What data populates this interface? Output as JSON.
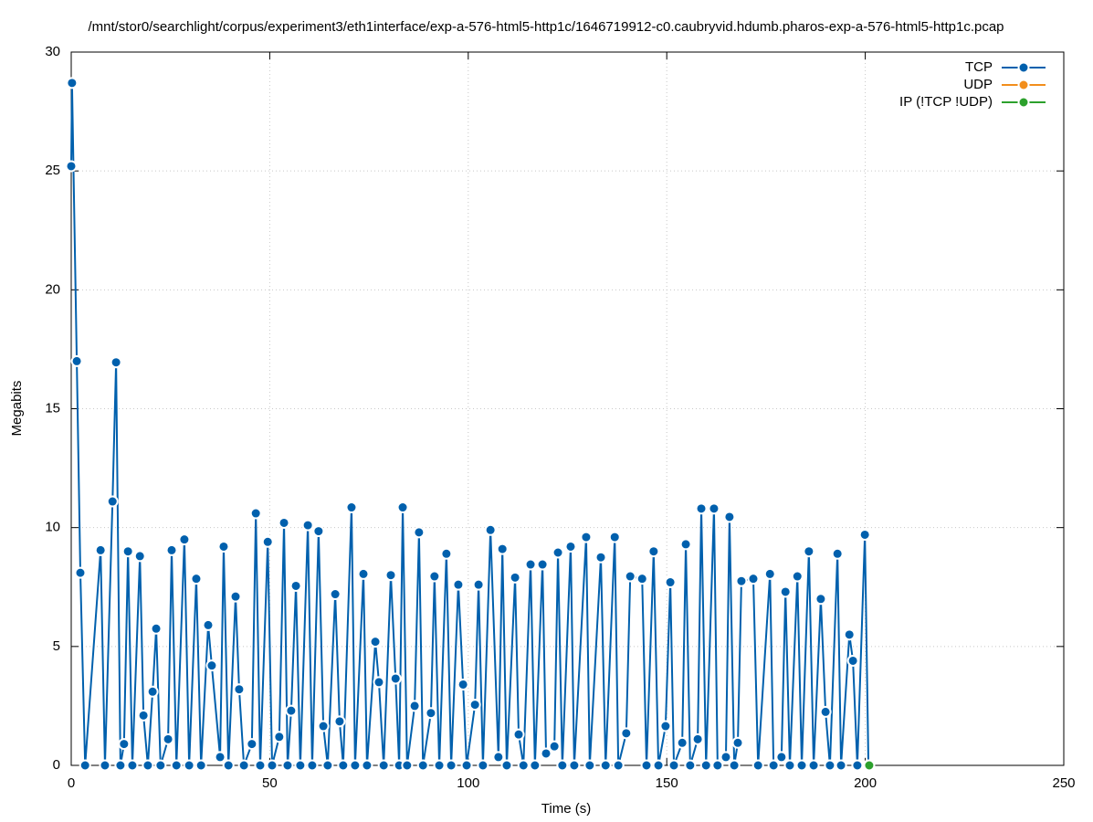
{
  "chart_data": {
    "type": "line",
    "title": "/mnt/stor0/searchlight/corpus/experiment3/eth1interface/exp-a-576-html5-http1c/1646719912-c0.caubryvid.hdumb.pharos-exp-a-576-html5-http1c.pcap",
    "x_label": "Time (s)",
    "y_label": "Megabits",
    "xlim": [
      0,
      250
    ],
    "xticks": [
      0,
      50,
      100,
      150,
      200,
      250
    ],
    "ylim": [
      0,
      30
    ],
    "yticks": [
      0,
      5,
      10,
      15,
      20,
      25,
      30
    ],
    "grid": true,
    "legend": "top-right",
    "series": [
      {
        "name": "TCP",
        "color": "#0060ad",
        "x": [
          0,
          0.2,
          1.4,
          2.3,
          3.5,
          7.4,
          8.5,
          10.4,
          11.3,
          12.4,
          13.3,
          14.3,
          15.4,
          17.3,
          18.2,
          19.3,
          20.5,
          21.4,
          22.5,
          24.4,
          25.3,
          26.5,
          28.5,
          29.7,
          31.5,
          32.7,
          34.5,
          35.4,
          37.5,
          38.4,
          39.6,
          41.4,
          42.3,
          43.5,
          45.5,
          46.5,
          47.6,
          49.5,
          50.6,
          52.4,
          53.6,
          54.5,
          55.4,
          56.6,
          57.7,
          59.6,
          60.7,
          62.3,
          63.5,
          64.6,
          66.5,
          67.6,
          68.5,
          70.6,
          71.5,
          73.6,
          74.5,
          76.6,
          77.5,
          78.7,
          80.5,
          81.7,
          82.6,
          83.5,
          84.6,
          86.5,
          87.6,
          88.6,
          90.6,
          91.5,
          92.7,
          94.5,
          95.7,
          97.5,
          98.7,
          99.6,
          101.7,
          102.6,
          103.7,
          105.6,
          107.6,
          108.6,
          109.7,
          111.8,
          112.7,
          113.9,
          115.7,
          116.8,
          118.7,
          119.6,
          121.7,
          122.6,
          123.7,
          125.8,
          126.7,
          129.7,
          130.6,
          133.4,
          134.6,
          136.9,
          137.8,
          139.8,
          140.8,
          143.8,
          144.9,
          146.7,
          147.9,
          149.7,
          150.9,
          151.8,
          153.9,
          154.8,
          155.9,
          157.8,
          158.7,
          159.9,
          161.9,
          162.8,
          164.9,
          165.8,
          167.0,
          167.9,
          168.8,
          171.8,
          173.0,
          176.0,
          176.9,
          178.9,
          179.9,
          181.0,
          182.9,
          184.0,
          185.8,
          187.0,
          188.8,
          190.0,
          191.1,
          193.0,
          193.9,
          196.0,
          196.9,
          198.0,
          199.9,
          200.8
        ],
        "values": [
          25.2,
          28.7,
          17.0,
          8.1,
          0,
          9.05,
          0,
          11.1,
          16.95,
          0,
          0.9,
          9.0,
          0,
          8.8,
          2.1,
          0,
          3.1,
          5.75,
          0,
          1.1,
          9.05,
          0,
          9.5,
          0,
          7.85,
          0,
          5.9,
          4.2,
          0.35,
          9.2,
          0,
          7.1,
          3.2,
          0,
          0.9,
          10.6,
          0,
          9.4,
          0,
          1.2,
          10.2,
          0,
          2.3,
          7.55,
          0,
          10.1,
          0,
          9.85,
          1.65,
          0,
          7.2,
          1.85,
          0,
          10.85,
          0,
          8.05,
          0,
          5.2,
          3.5,
          0,
          8.0,
          3.65,
          0,
          10.85,
          0,
          2.5,
          9.8,
          0,
          2.2,
          7.95,
          0,
          8.9,
          0,
          7.6,
          3.4,
          0,
          2.55,
          7.6,
          0,
          9.9,
          0.35,
          9.1,
          0,
          7.9,
          1.3,
          0,
          8.45,
          0,
          8.45,
          0.5,
          0.8,
          8.95,
          0,
          9.2,
          0,
          9.6,
          0,
          8.75,
          0,
          9.6,
          0,
          1.35,
          7.95,
          7.85,
          0,
          9.0,
          0,
          1.65,
          7.7,
          0,
          0.95,
          9.3,
          0,
          1.1,
          10.8,
          0,
          10.8,
          0,
          0.35,
          10.45,
          0,
          0.95,
          7.75,
          7.85,
          0,
          8.05,
          0,
          0.35,
          7.3,
          0,
          7.95,
          0,
          9.0,
          0,
          7.0,
          2.25,
          0,
          8.9,
          0,
          5.5,
          4.4,
          0,
          9.7,
          0
        ]
      },
      {
        "name": "UDP",
        "color": "#f28e1c",
        "x": [],
        "values": []
      },
      {
        "name": "IP (!TCP  !UDP)",
        "color": "#2ca02c",
        "x": [
          201.0
        ],
        "values": [
          0
        ]
      }
    ]
  }
}
